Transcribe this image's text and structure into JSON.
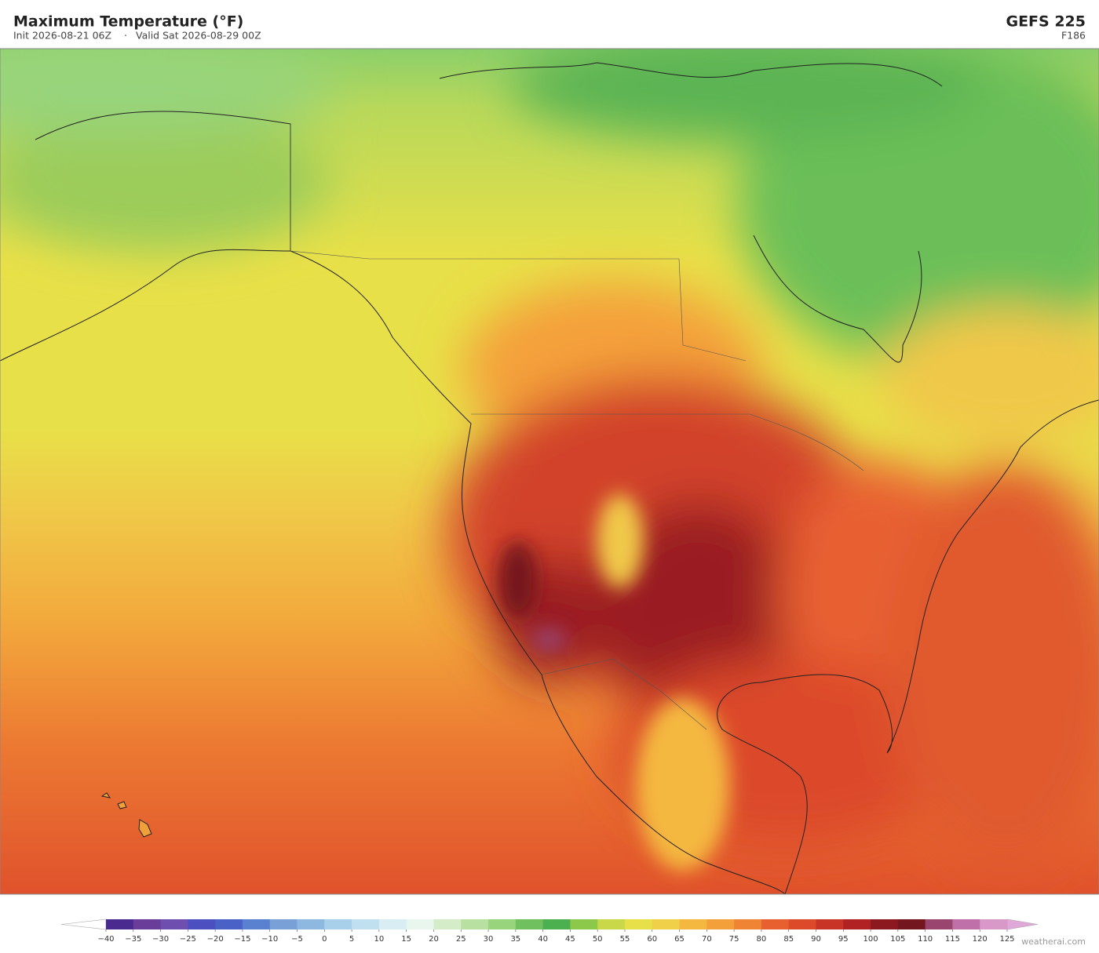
{
  "header": {
    "title": "Maximum Temperature  (°F)",
    "init": "Init 2026-08-21 06Z",
    "separator": "·",
    "valid": "Valid Sat 2026-08-29 00Z",
    "model": "GEFS  225",
    "forecast_hour": "F186"
  },
  "colorbar": {
    "ticks": [
      {
        "value": -40,
        "label": "−40"
      },
      {
        "value": -35,
        "label": "−35"
      },
      {
        "value": -30,
        "label": "−30"
      },
      {
        "value": -25,
        "label": "−25"
      },
      {
        "value": -20,
        "label": "−20"
      },
      {
        "value": -15,
        "label": "−15"
      },
      {
        "value": -10,
        "label": "−10"
      },
      {
        "value": -5,
        "label": "−5"
      },
      0,
      5,
      10,
      15,
      20,
      25,
      30,
      35,
      40,
      45,
      50,
      55,
      60,
      65,
      70,
      75,
      80,
      85,
      90,
      95,
      100,
      105,
      110,
      115,
      120,
      125
    ],
    "colors": [
      "#4b2a8f",
      "#6a3d9a",
      "#6e4fb0",
      "#4b4fc0",
      "#4a62c8",
      "#5a80d0",
      "#7aa0d8",
      "#8fb8e0",
      "#a8d0ea",
      "#c0e0f0",
      "#d8eef4",
      "#e8f6ee",
      "#d4ecc8",
      "#b8e0a0",
      "#98d47c",
      "#70c060",
      "#4caf50",
      "#8cc84a",
      "#c8d848",
      "#e8e048",
      "#f0d048",
      "#f4b840",
      "#f4a03a",
      "#ee8434",
      "#e86030",
      "#dc4a2a",
      "#c83426",
      "#b02224",
      "#8c1820",
      "#74161e",
      "#9a4470",
      "#c070a8",
      "#d898c8"
    ],
    "under_color": "#ffffff",
    "over_color": "#e0a8d8"
  },
  "watermark": "weatherai.com"
}
